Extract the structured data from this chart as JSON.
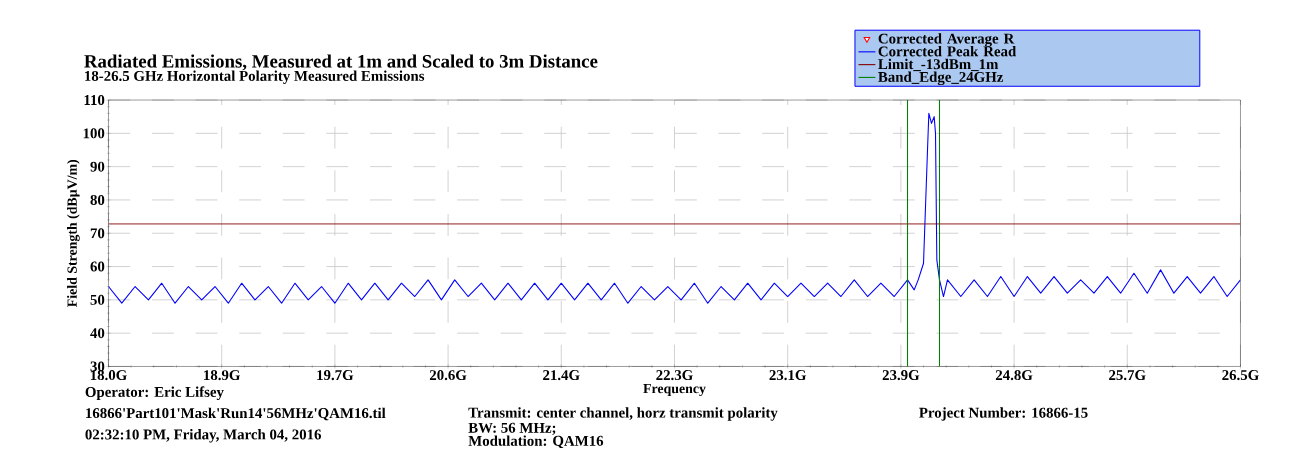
{
  "chart_data": {
    "type": "line",
    "title": "Radiated Emissions, Measured at 1m and Scaled to 3m Distance",
    "subtitle": "18-26.5 GHz Horizontal Polarity Measured Emissions",
    "xlabel": "Frequency",
    "ylabel": "Field Strength (dBµV/m)",
    "xlim": [
      18.0,
      26.5
    ],
    "xticks": [
      {
        "value": 18.0,
        "label": "18.0G"
      },
      {
        "value": 18.85,
        "label": "18.9G"
      },
      {
        "value": 19.7,
        "label": "19.7G"
      },
      {
        "value": 20.55,
        "label": "20.6G"
      },
      {
        "value": 21.4,
        "label": "21.4G"
      },
      {
        "value": 22.25,
        "label": "22.3G"
      },
      {
        "value": 23.1,
        "label": "23.1G"
      },
      {
        "value": 23.95,
        "label": "23.9G"
      },
      {
        "value": 24.8,
        "label": "24.8G"
      },
      {
        "value": 25.65,
        "label": "25.7G"
      },
      {
        "value": 26.5,
        "label": "26.5G"
      }
    ],
    "ylim": [
      30,
      110
    ],
    "yticks": [
      30,
      40,
      50,
      60,
      70,
      80,
      90,
      100,
      110
    ],
    "grid": true,
    "legend": "top right",
    "series": [
      {
        "name": "Corrected Average R",
        "type": "scatter",
        "marker": "triangle",
        "color": "#ff0000"
      },
      {
        "name": "Corrected Peak Read",
        "color": "#0000ff",
        "x": [
          18.0,
          18.1,
          18.2,
          18.3,
          18.4,
          18.5,
          18.6,
          18.7,
          18.8,
          18.9,
          19.0,
          19.1,
          19.2,
          19.3,
          19.4,
          19.5,
          19.6,
          19.7,
          19.8,
          19.9,
          20.0,
          20.1,
          20.2,
          20.3,
          20.4,
          20.5,
          20.6,
          20.7,
          20.8,
          20.9,
          21.0,
          21.1,
          21.2,
          21.3,
          21.4,
          21.5,
          21.6,
          21.7,
          21.8,
          21.9,
          22.0,
          22.1,
          22.2,
          22.3,
          22.4,
          22.5,
          22.6,
          22.7,
          22.8,
          22.9,
          23.0,
          23.1,
          23.2,
          23.3,
          23.4,
          23.5,
          23.6,
          23.7,
          23.8,
          23.9,
          24.0,
          24.05,
          24.08,
          24.12,
          24.15,
          24.16,
          24.18,
          24.2,
          24.21,
          24.22,
          24.24,
          24.27,
          24.3,
          24.4,
          24.5,
          24.6,
          24.7,
          24.8,
          24.9,
          25.0,
          25.1,
          25.2,
          25.3,
          25.4,
          25.5,
          25.6,
          25.7,
          25.8,
          25.9,
          26.0,
          26.1,
          26.2,
          26.3,
          26.4,
          26.5
        ],
        "values": [
          54,
          49,
          54,
          50,
          55,
          49,
          54,
          50,
          54,
          49,
          55,
          50,
          54,
          49,
          55,
          50,
          54,
          49,
          55,
          50,
          55,
          50,
          55,
          51,
          56,
          50,
          56,
          51,
          55,
          50,
          55,
          50,
          55,
          50,
          55,
          50,
          55,
          50,
          55,
          49,
          54,
          50,
          54,
          50,
          55,
          49,
          54,
          50,
          55,
          50,
          55,
          51,
          55,
          51,
          55,
          51,
          56,
          51,
          55,
          51,
          56,
          53,
          56,
          61,
          95,
          106,
          103,
          105,
          100,
          62,
          56,
          51,
          56,
          51,
          56,
          51,
          57,
          51,
          57,
          52,
          57,
          52,
          56,
          52,
          57,
          52,
          58,
          52,
          59,
          52,
          57,
          52,
          57,
          51,
          56
        ]
      },
      {
        "name": "Limit_-13dBm_1m",
        "color": "#800000",
        "x": [
          18.0,
          26.5
        ],
        "values": [
          72.8,
          72.8
        ]
      },
      {
        "name": "Band_Edge_24GHz",
        "color": "#008000",
        "x": [
          24.0,
          24.0
        ],
        "values": [
          30,
          110
        ]
      },
      {
        "color": "#008000",
        "x": [
          24.24,
          24.24
        ],
        "values": [
          30,
          110
        ]
      }
    ],
    "annotations": [
      "Operator: Eric Lifsey",
      "16866'Part101'Mask'Run14'56MHz'QAM16.til",
      "Transmit: center channel, horz transmit polarity",
      "BW: 56 MHz;",
      "Modulation: QAM16",
      "02:32:10 PM, Friday, March 04, 2016",
      "Project Number: 16866-15"
    ]
  }
}
